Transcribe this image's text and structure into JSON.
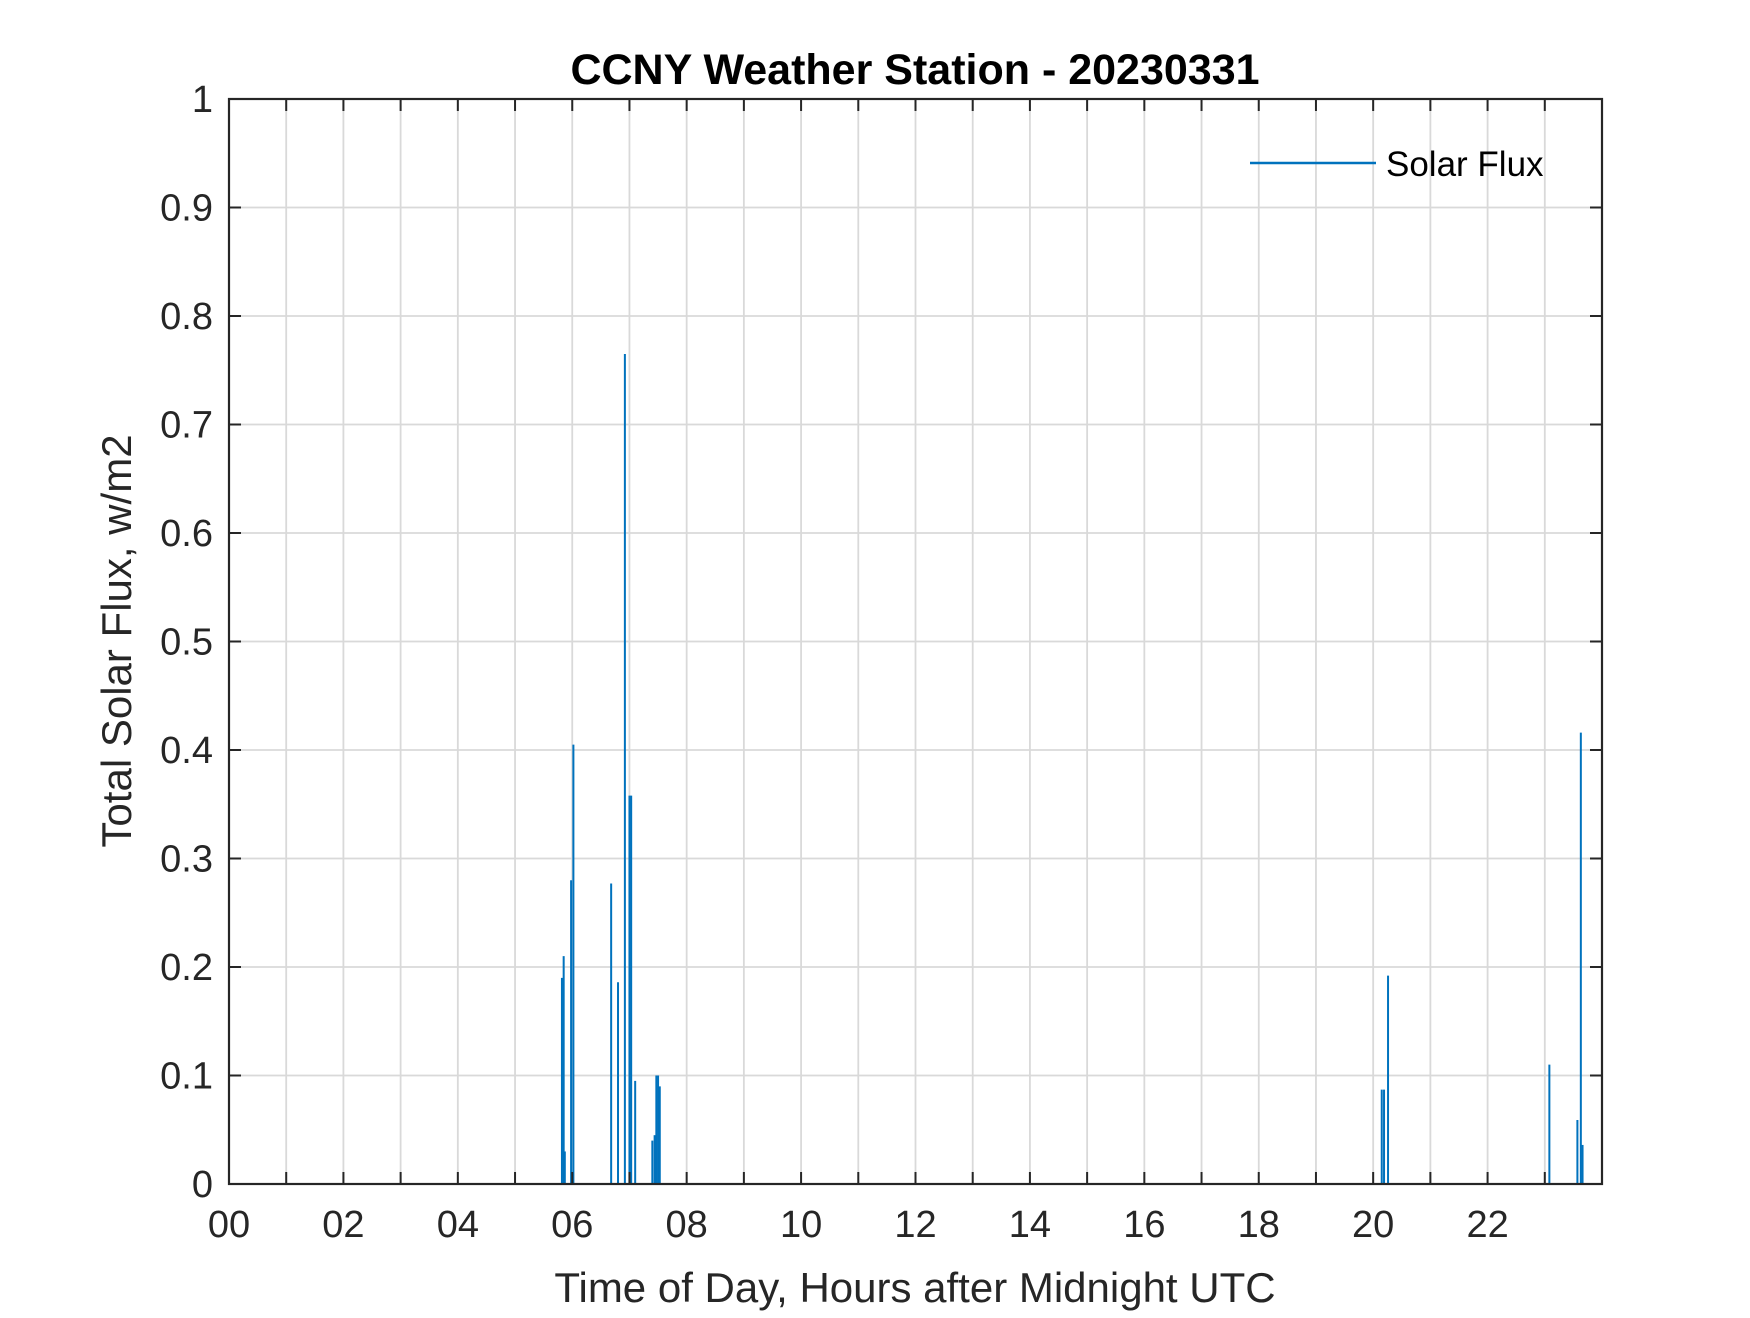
{
  "chart_data": {
    "type": "line",
    "title": "CCNY Weather Station - 20230331",
    "xlabel": "Time of Day, Hours after Midnight UTC",
    "ylabel": "Total Solar Flux, w/m2",
    "xlim": [
      0,
      24
    ],
    "ylim": [
      0,
      1
    ],
    "grid": true,
    "legend": {
      "position": "top-right",
      "entries": [
        "Solar Flux"
      ]
    },
    "x_tick_values": [
      0,
      2,
      4,
      6,
      8,
      10,
      12,
      14,
      16,
      18,
      20,
      22
    ],
    "x_tick_labels": [
      "00",
      "02",
      "04",
      "06",
      "08",
      "10",
      "12",
      "14",
      "16",
      "18",
      "20",
      "22"
    ],
    "y_tick_values": [
      0,
      0.1,
      0.2,
      0.3,
      0.4,
      0.5,
      0.6,
      0.7,
      0.8,
      0.9,
      1
    ],
    "y_tick_labels": [
      "0",
      "0.1",
      "0.2",
      "0.3",
      "0.4",
      "0.5",
      "0.6",
      "0.7",
      "0.8",
      "0.9",
      "1"
    ],
    "series": [
      {
        "name": "Solar Flux",
        "color": "#0072BD",
        "spikes": [
          {
            "x": 5.82,
            "y": 0.19
          },
          {
            "x": 5.85,
            "y": 0.21
          },
          {
            "x": 5.87,
            "y": 0.03
          },
          {
            "x": 5.98,
            "y": 0.28
          },
          {
            "x": 6.02,
            "y": 0.405
          },
          {
            "x": 6.68,
            "y": 0.277
          },
          {
            "x": 6.8,
            "y": 0.186
          },
          {
            "x": 6.92,
            "y": 0.765
          },
          {
            "x": 7.0,
            "y": 0.358
          },
          {
            "x": 7.03,
            "y": 0.358
          },
          {
            "x": 7.1,
            "y": 0.095
          },
          {
            "x": 7.4,
            "y": 0.04
          },
          {
            "x": 7.44,
            "y": 0.045
          },
          {
            "x": 7.47,
            "y": 0.1
          },
          {
            "x": 7.5,
            "y": 0.1
          },
          {
            "x": 7.53,
            "y": 0.09
          },
          {
            "x": 20.15,
            "y": 0.087
          },
          {
            "x": 20.19,
            "y": 0.087
          },
          {
            "x": 20.26,
            "y": 0.192
          },
          {
            "x": 23.08,
            "y": 0.11
          },
          {
            "x": 23.57,
            "y": 0.059
          },
          {
            "x": 23.63,
            "y": 0.416
          },
          {
            "x": 23.66,
            "y": 0.036
          }
        ]
      }
    ]
  }
}
